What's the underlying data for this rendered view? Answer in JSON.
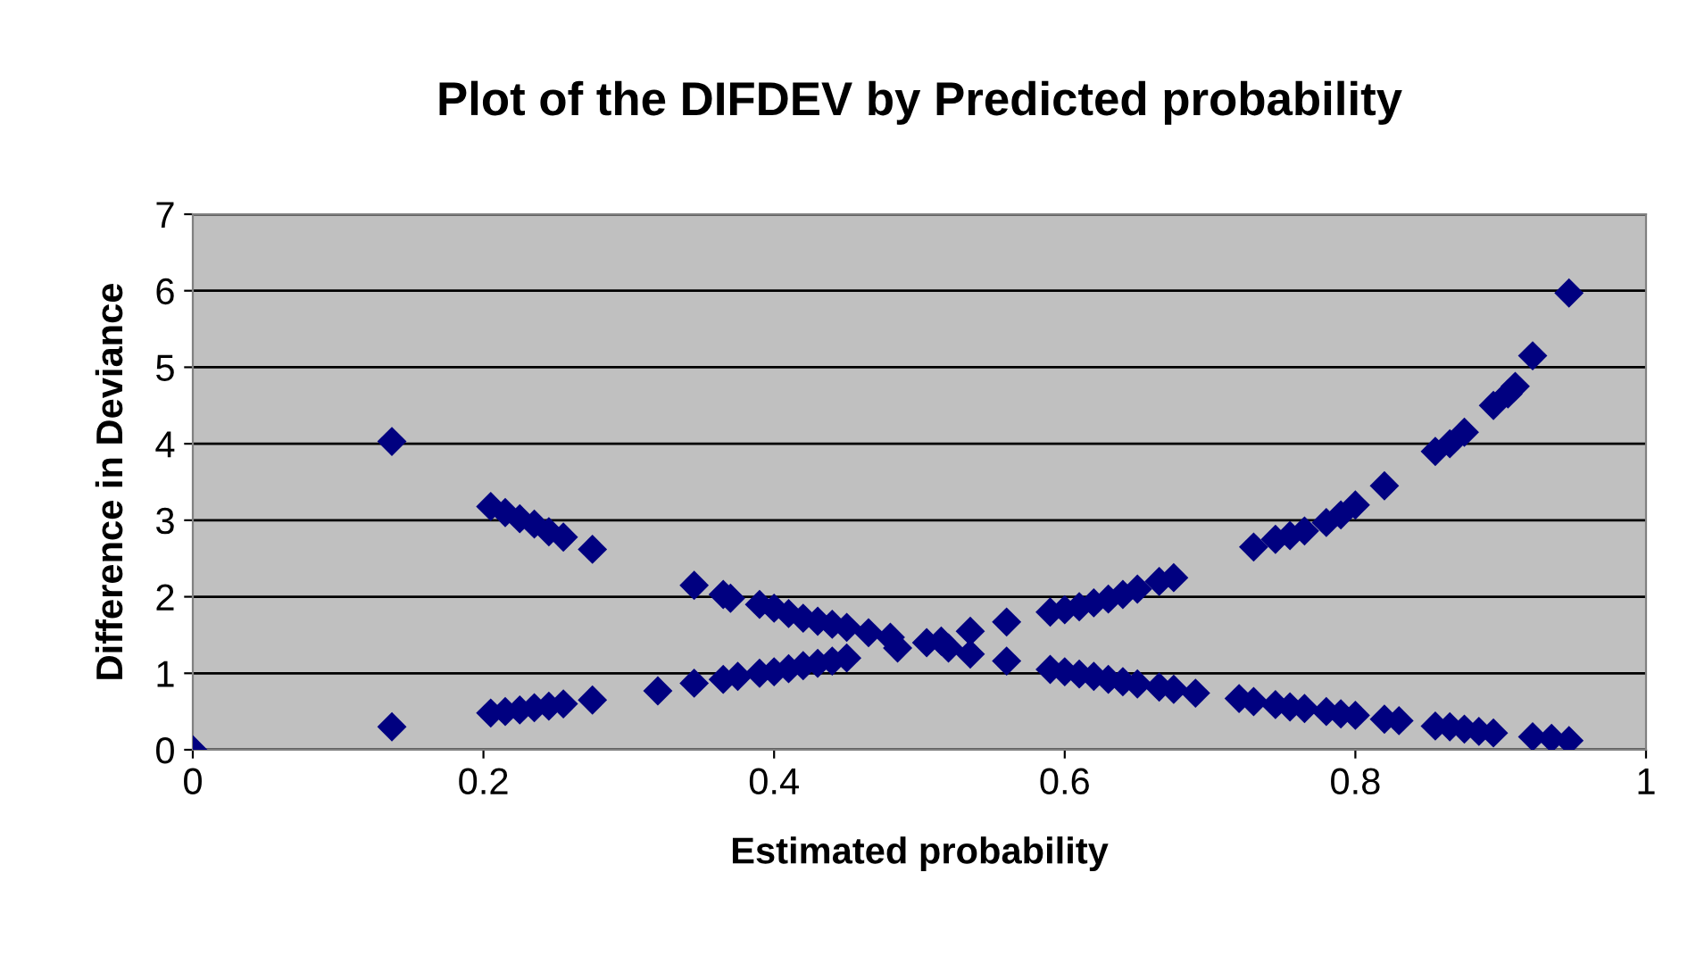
{
  "chart_data": {
    "type": "scatter",
    "title": "Plot of the DIFDEV by Predicted probability",
    "xlabel": "Estimated probability",
    "ylabel": "Difference in Deviance",
    "xlim": [
      0,
      1
    ],
    "xticks": [
      0,
      0.2,
      0.4,
      0.6,
      0.8,
      1
    ],
    "ylim": [
      0,
      7
    ],
    "yticks": [
      0,
      1,
      2,
      3,
      4,
      5,
      6,
      7
    ],
    "grid": "y",
    "legend": false,
    "marker": "diamond",
    "series": [
      {
        "color": "#000080",
        "x": [
          0,
          0.137,
          0.137,
          0.205,
          0.215,
          0.225,
          0.235,
          0.245,
          0.255,
          0.275,
          0.205,
          0.215,
          0.225,
          0.235,
          0.245,
          0.255,
          0.275,
          0.32,
          0.345,
          0.345,
          0.365,
          0.37,
          0.365,
          0.375,
          0.39,
          0.39,
          0.4,
          0.4,
          0.41,
          0.41,
          0.42,
          0.42,
          0.43,
          0.43,
          0.44,
          0.44,
          0.45,
          0.45,
          0.465,
          0.48,
          0.485,
          0.505,
          0.515,
          0.52,
          0.535,
          0.535,
          0.56,
          0.56,
          0.59,
          0.59,
          0.6,
          0.6,
          0.61,
          0.61,
          0.62,
          0.62,
          0.63,
          0.63,
          0.64,
          0.64,
          0.65,
          0.65,
          0.665,
          0.665,
          0.675,
          0.675,
          0.69,
          0.72,
          0.73,
          0.73,
          0.745,
          0.745,
          0.755,
          0.755,
          0.765,
          0.765,
          0.78,
          0.78,
          0.79,
          0.79,
          0.8,
          0.8,
          0.82,
          0.82,
          0.83,
          0.855,
          0.865,
          0.875,
          0.855,
          0.865,
          0.875,
          0.885,
          0.895,
          0.895,
          0.905,
          0.91,
          0.922,
          0.922,
          0.935,
          0.947,
          0.947
        ],
        "values": [
          0,
          4.03,
          0.3,
          3.18,
          3.1,
          3.02,
          2.95,
          2.85,
          2.78,
          2.62,
          0.48,
          0.5,
          0.52,
          0.55,
          0.57,
          0.6,
          0.65,
          0.77,
          2.15,
          0.87,
          2.03,
          1.98,
          0.92,
          0.96,
          1.9,
          1.0,
          1.85,
          1.02,
          1.78,
          1.06,
          1.72,
          1.1,
          1.68,
          1.13,
          1.64,
          1.16,
          1.6,
          1.2,
          1.53,
          1.47,
          1.33,
          1.4,
          1.42,
          1.33,
          1.55,
          1.25,
          1.67,
          1.16,
          1.8,
          1.05,
          1.83,
          1.02,
          1.87,
          0.99,
          1.92,
          0.96,
          1.97,
          0.92,
          2.03,
          0.89,
          2.1,
          0.86,
          2.2,
          0.82,
          2.25,
          0.79,
          0.74,
          0.67,
          2.65,
          0.63,
          2.75,
          0.59,
          2.8,
          0.56,
          2.86,
          0.54,
          2.97,
          0.5,
          3.07,
          0.47,
          3.2,
          0.45,
          3.45,
          0.4,
          0.38,
          3.9,
          4.0,
          4.15,
          0.31,
          0.3,
          0.27,
          0.24,
          0.22,
          4.5,
          4.65,
          4.75,
          5.15,
          0.17,
          0.15,
          5.97,
          0.12
        ]
      }
    ]
  }
}
